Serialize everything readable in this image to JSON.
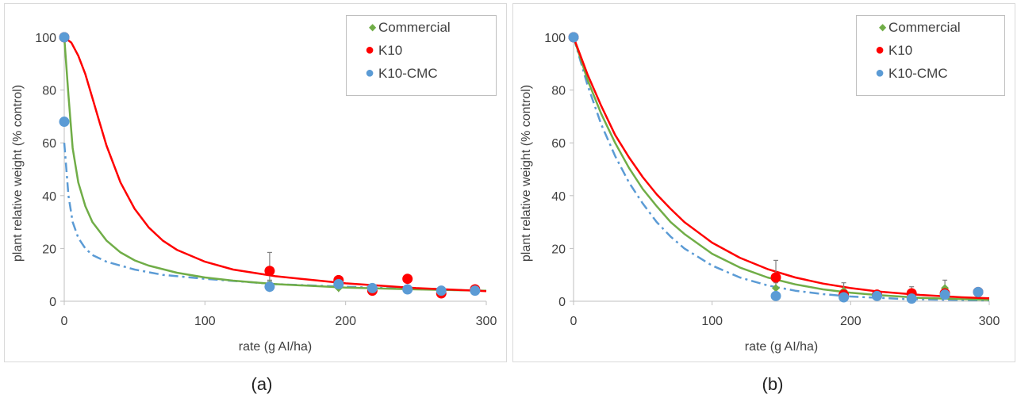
{
  "captions": [
    "(a)",
    "(b)"
  ],
  "colors": {
    "commercial": "#70ad47",
    "k10": "#ff0000",
    "k10_cmc": "#5b9bd5",
    "axis": "#bfbfbf",
    "error_bar": "#7f7f7f",
    "text": "#404040"
  },
  "chart_data": [
    {
      "type": "scatter",
      "title": "",
      "xlabel": "rate (g AI/ha)",
      "ylabel": "plant relative weight (% control)",
      "xlim": [
        0,
        300
      ],
      "ylim": [
        0,
        100
      ],
      "x_ticks": [
        "0",
        "100",
        "200",
        "300"
      ],
      "y_ticks": [
        "0",
        "20",
        "40",
        "60",
        "80",
        "100"
      ],
      "legend": {
        "position": "top-right",
        "entries": [
          "Commercial",
          "K10",
          "K10-CMC"
        ]
      },
      "series": [
        {
          "name": "Commercial",
          "marker": "diamond",
          "color": "#70ad47",
          "line": "solid",
          "x": [
            0,
            146,
            195,
            219,
            244,
            268,
            292
          ],
          "y": [
            100,
            6.5,
            5.0,
            4.5,
            4.2,
            4.3,
            4.0
          ],
          "err": [
            0,
            1.5,
            1.5,
            1.0,
            1.0,
            1.0,
            0.8
          ],
          "fit": [
            [
              0,
              100
            ],
            [
              3,
              78
            ],
            [
              6,
              58
            ],
            [
              10,
              45
            ],
            [
              15,
              36
            ],
            [
              20,
              30
            ],
            [
              30,
              23
            ],
            [
              40,
              18.5
            ],
            [
              50,
              15.5
            ],
            [
              60,
              13.5
            ],
            [
              80,
              10.8
            ],
            [
              100,
              9.0
            ],
            [
              120,
              7.8
            ],
            [
              150,
              6.5
            ],
            [
              200,
              5.2
            ],
            [
              250,
              4.5
            ],
            [
              300,
              4.0
            ]
          ]
        },
        {
          "name": "K10",
          "marker": "circle",
          "color": "#ff0000",
          "line": "solid",
          "x": [
            0,
            146,
            195,
            219,
            244,
            268,
            292
          ],
          "y": [
            100,
            11.5,
            8.0,
            4.0,
            8.5,
            3.0,
            4.5
          ],
          "err": [
            0,
            7.0,
            1.0,
            1.0,
            1.0,
            1.0,
            0.5
          ],
          "fit": [
            [
              0,
              100
            ],
            [
              5,
              98
            ],
            [
              10,
              93
            ],
            [
              15,
              86
            ],
            [
              20,
              77
            ],
            [
              25,
              68
            ],
            [
              30,
              59
            ],
            [
              40,
              45
            ],
            [
              50,
              35
            ],
            [
              60,
              28
            ],
            [
              70,
              23
            ],
            [
              80,
              19.5
            ],
            [
              100,
              15
            ],
            [
              120,
              12
            ],
            [
              150,
              9.5
            ],
            [
              200,
              6.8
            ],
            [
              250,
              5.0
            ],
            [
              300,
              3.8
            ]
          ]
        },
        {
          "name": "K10-CMC",
          "marker": "circle",
          "color": "#5b9bd5",
          "line": "dashdot",
          "x": [
            0,
            0,
            146,
            195,
            219,
            244,
            268,
            292
          ],
          "y": [
            100,
            68,
            5.5,
            6.5,
            5.0,
            4.5,
            4.0,
            4.0
          ],
          "err": [
            0,
            0,
            2.0,
            2.0,
            1.0,
            1.0,
            1.0,
            0.5
          ],
          "fit": [
            [
              0,
              60
            ],
            [
              3,
              40
            ],
            [
              6,
              30
            ],
            [
              10,
              24
            ],
            [
              15,
              20
            ],
            [
              20,
              17.5
            ],
            [
              30,
              15
            ],
            [
              50,
              12
            ],
            [
              70,
              10
            ],
            [
              100,
              8.5
            ],
            [
              150,
              6.5
            ],
            [
              200,
              5.5
            ],
            [
              250,
              4.6
            ],
            [
              300,
              4.0
            ]
          ]
        }
      ]
    },
    {
      "type": "scatter",
      "title": "",
      "xlabel": "rate (g AI/ha)",
      "ylabel": "plant relative weight (% control)",
      "xlim": [
        0,
        300
      ],
      "ylim": [
        0,
        100
      ],
      "x_ticks": [
        "0",
        "100",
        "200",
        "300"
      ],
      "y_ticks": [
        "0",
        "20",
        "40",
        "60",
        "80",
        "100"
      ],
      "legend": {
        "position": "top-right",
        "entries": [
          "Commercial",
          "K10",
          "K10-CMC"
        ]
      },
      "series": [
        {
          "name": "Commercial",
          "marker": "diamond",
          "color": "#70ad47",
          "line": "solid",
          "x": [
            0,
            146,
            195,
            219,
            244,
            268,
            292
          ],
          "y": [
            100,
            5.0,
            4.0,
            2.5,
            1.5,
            5.0,
            3.0
          ],
          "err": [
            0,
            2.0,
            3.0,
            1.0,
            1.0,
            3.0,
            0.5
          ],
          "fit": [
            [
              0,
              100
            ],
            [
              10,
              84
            ],
            [
              20,
              71
            ],
            [
              30,
              60
            ],
            [
              40,
              50.5
            ],
            [
              50,
              42.5
            ],
            [
              60,
              36
            ],
            [
              70,
              30
            ],
            [
              80,
              25.5
            ],
            [
              100,
              18
            ],
            [
              120,
              12.8
            ],
            [
              140,
              9.0
            ],
            [
              160,
              6.4
            ],
            [
              180,
              4.5
            ],
            [
              200,
              3.2
            ],
            [
              220,
              2.3
            ],
            [
              250,
              1.3
            ],
            [
              280,
              0.8
            ],
            [
              300,
              0.5
            ]
          ]
        },
        {
          "name": "K10",
          "marker": "circle",
          "color": "#ff0000",
          "line": "solid",
          "x": [
            0,
            146,
            195,
            219,
            244,
            268,
            292
          ],
          "y": [
            100,
            9.0,
            2.5,
            2.5,
            3.0,
            3.0,
            3.5
          ],
          "err": [
            0,
            6.5,
            0.5,
            0.5,
            2.5,
            0.5,
            0.5
          ],
          "fit": [
            [
              0,
              100
            ],
            [
              10,
              86
            ],
            [
              20,
              74
            ],
            [
              30,
              63
            ],
            [
              40,
              54.5
            ],
            [
              50,
              47
            ],
            [
              60,
              40.5
            ],
            [
              70,
              35
            ],
            [
              80,
              30
            ],
            [
              100,
              22.2
            ],
            [
              120,
              16.5
            ],
            [
              140,
              12.2
            ],
            [
              160,
              9.0
            ],
            [
              180,
              6.7
            ],
            [
              200,
              5.0
            ],
            [
              220,
              3.7
            ],
            [
              250,
              2.4
            ],
            [
              280,
              1.5
            ],
            [
              300,
              1.1
            ]
          ]
        },
        {
          "name": "K10-CMC",
          "marker": "circle",
          "color": "#5b9bd5",
          "line": "dashdot",
          "x": [
            0,
            146,
            195,
            219,
            244,
            268,
            292
          ],
          "y": [
            100,
            2.0,
            1.5,
            2.0,
            1.0,
            2.5,
            3.5
          ],
          "err": [
            0,
            0.5,
            0.5,
            0.5,
            0.5,
            0.5,
            0.5
          ],
          "fit": [
            [
              0,
              100
            ],
            [
              10,
              82
            ],
            [
              20,
              67
            ],
            [
              30,
              55
            ],
            [
              40,
              45
            ],
            [
              50,
              37
            ],
            [
              60,
              30
            ],
            [
              70,
              24.5
            ],
            [
              80,
              20
            ],
            [
              100,
              13.5
            ],
            [
              120,
              9.0
            ],
            [
              140,
              6.0
            ],
            [
              160,
              4.0
            ],
            [
              180,
              2.7
            ],
            [
              200,
              1.8
            ],
            [
              240,
              0.8
            ],
            [
              300,
              0.3
            ]
          ]
        }
      ]
    }
  ]
}
